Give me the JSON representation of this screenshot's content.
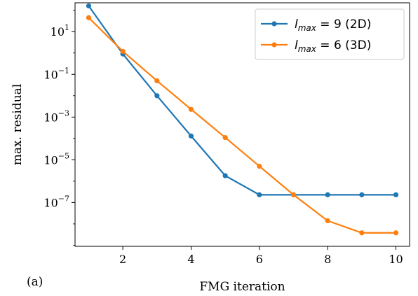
{
  "chart_data": {
    "type": "line",
    "panel_label": "(a)",
    "xlabel": "FMG iteration",
    "ylabel": "max. residual",
    "yscale": "log",
    "xlim": [
      0.6,
      10.4
    ],
    "ylim_log10": [
      -9.05,
      2.35
    ],
    "grid": false,
    "legend_position": "top-right",
    "x_ticks": [
      2,
      4,
      6,
      8,
      10
    ],
    "y_ticks": [
      {
        "exp": 1,
        "label": "10",
        "sup": "1"
      },
      {
        "exp": -1,
        "label": "10",
        "sup": "−1"
      },
      {
        "exp": -3,
        "label": "10",
        "sup": "−3"
      },
      {
        "exp": -5,
        "label": "10",
        "sup": "−5"
      },
      {
        "exp": -7,
        "label": "10",
        "sup": "−7"
      }
    ],
    "series": [
      {
        "name": "l_max = 9 (2D)",
        "legend": {
          "sym": "l",
          "sub": "max",
          "rest": " = 9 (2D)"
        },
        "color": "#1f77b4",
        "x": [
          1,
          2,
          3,
          4,
          5,
          6,
          7,
          8,
          9,
          10
        ],
        "y": [
          160.0,
          0.9,
          0.01,
          0.00013,
          1.8e-06,
          2.3e-07,
          2.3e-07,
          2.3e-07,
          2.3e-07,
          2.3e-07
        ]
      },
      {
        "name": "l_max = 6 (3D)",
        "legend": {
          "sym": "l",
          "sub": "max",
          "rest": " = 6 (3D)"
        },
        "color": "#ff7f0e",
        "x": [
          1,
          2,
          3,
          4,
          5,
          6,
          7,
          8,
          9,
          10
        ],
        "y": [
          45,
          1.2,
          0.05,
          0.0023,
          0.00011,
          5e-06,
          2.3e-07,
          1.4e-08,
          3.8e-09,
          3.8e-09
        ]
      }
    ]
  }
}
